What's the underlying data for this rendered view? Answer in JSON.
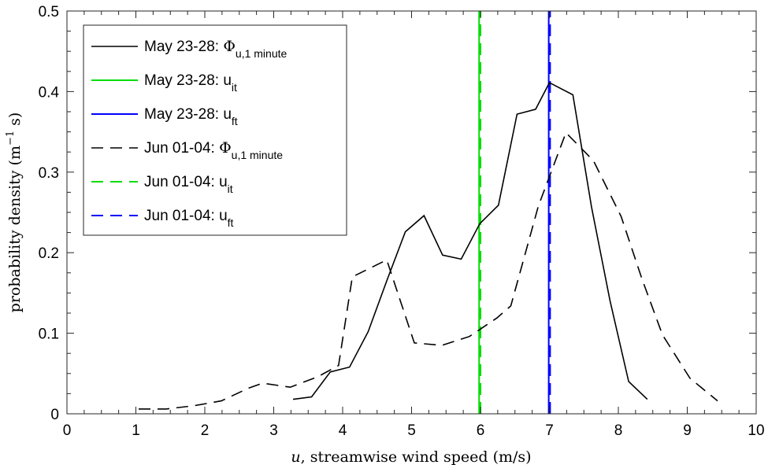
{
  "chart_data": {
    "type": "line",
    "xlabel": "u, streamwise wind speed (m/s)",
    "xlabel_var": "u",
    "xlabel_rest": ", streamwise wind speed (m/s)",
    "ylabel_main": "probability density (m",
    "ylabel_sup": "−1",
    "ylabel_tail": " s)",
    "xlim": [
      0,
      10
    ],
    "ylim": [
      0,
      0.5
    ],
    "xticks": [
      0,
      1,
      2,
      3,
      4,
      5,
      6,
      7,
      8,
      9,
      10
    ],
    "yticks": [
      0,
      0.1,
      0.2,
      0.3,
      0.4,
      0.5
    ],
    "xtick_labels": [
      "0",
      "1",
      "2",
      "3",
      "4",
      "5",
      "6",
      "7",
      "8",
      "9",
      "10"
    ],
    "ytick_labels": [
      "0",
      "0.1",
      "0.2",
      "0.3",
      "0.4",
      "0.5"
    ],
    "grid": false,
    "legend_placement": "top-left",
    "series": [
      {
        "name": "May 23-28: Φu,1 minute",
        "legend_prefix": "May 23-28: ",
        "legend_symbol": "Φ",
        "legend_sub": "u,1 minute",
        "color": "#000000",
        "style": "solid",
        "x": [
          3.28,
          3.55,
          3.82,
          4.1,
          4.37,
          4.64,
          4.91,
          5.18,
          5.45,
          5.72,
          5.99,
          6.26,
          6.53,
          6.8,
          7.0,
          7.34,
          7.61,
          7.88,
          8.15,
          8.42
        ],
        "y": [
          0.018,
          0.021,
          0.052,
          0.058,
          0.102,
          0.165,
          0.226,
          0.246,
          0.197,
          0.192,
          0.236,
          0.259,
          0.372,
          0.378,
          0.411,
          0.396,
          0.257,
          0.14,
          0.04,
          0.018
        ]
      },
      {
        "name": "May 23-28: uit",
        "legend_prefix": "May 23-28: ",
        "legend_symbol": "u",
        "legend_sub": "it",
        "color": "#00dd00",
        "style": "solid",
        "vline": 5.98
      },
      {
        "name": "May 23-28: uft",
        "legend_prefix": "May 23-28: ",
        "legend_symbol": "u",
        "legend_sub": "ft",
        "color": "#0000ff",
        "style": "solid",
        "vline": 6.99
      },
      {
        "name": "Jun 01-04: Φu,1 minute",
        "legend_prefix": "Jun 01-04: ",
        "legend_symbol": "Φ",
        "legend_sub": "u,1 minute",
        "color": "#000000",
        "style": "dashed",
        "x": [
          1.04,
          1.44,
          1.84,
          2.24,
          2.64,
          2.84,
          3.24,
          3.64,
          3.94,
          4.14,
          4.64,
          5.04,
          5.44,
          5.84,
          6.24,
          6.44,
          6.84,
          7.24,
          7.64,
          8.04,
          8.34,
          8.64,
          9.04,
          9.44
        ],
        "y": [
          0.006,
          0.006,
          0.01,
          0.016,
          0.032,
          0.038,
          0.033,
          0.046,
          0.06,
          0.17,
          0.191,
          0.088,
          0.085,
          0.096,
          0.119,
          0.134,
          0.258,
          0.349,
          0.314,
          0.245,
          0.168,
          0.098,
          0.044,
          0.016
        ]
      },
      {
        "name": "Jun 01-04: uit",
        "legend_prefix": "Jun 01-04: ",
        "legend_symbol": "u",
        "legend_sub": "it",
        "color": "#00dd00",
        "style": "dashed",
        "vline": 6.0
      },
      {
        "name": "Jun 01-04: uft",
        "legend_prefix": "Jun 01-04: ",
        "legend_symbol": "u",
        "legend_sub": "ft",
        "color": "#0000ff",
        "style": "dashed",
        "vline": 7.01
      }
    ]
  }
}
